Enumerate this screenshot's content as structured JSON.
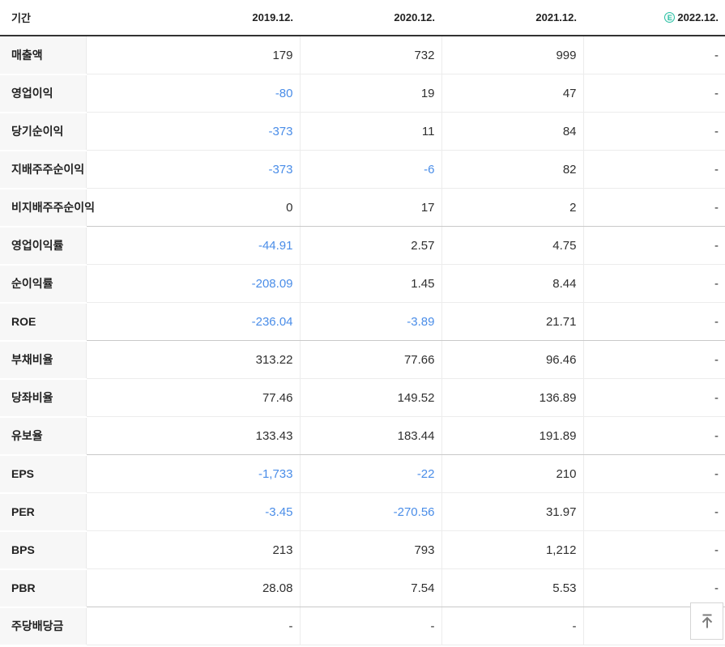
{
  "header": {
    "period_label": "기간",
    "estimate_badge_text": "E",
    "columns": [
      {
        "label": "2019.12.",
        "estimate": false
      },
      {
        "label": "2020.12.",
        "estimate": false
      },
      {
        "label": "2021.12.",
        "estimate": false
      },
      {
        "label": "2022.12.",
        "estimate": true
      }
    ]
  },
  "rows": [
    {
      "label": "매출액",
      "values": [
        "179",
        "732",
        "999",
        "-"
      ],
      "group_end": false
    },
    {
      "label": "영업이익",
      "values": [
        "-80",
        "19",
        "47",
        "-"
      ],
      "group_end": false
    },
    {
      "label": "당기순이익",
      "values": [
        "-373",
        "11",
        "84",
        "-"
      ],
      "group_end": false
    },
    {
      "label": "지배주주순이익",
      "values": [
        "-373",
        "-6",
        "82",
        "-"
      ],
      "group_end": false
    },
    {
      "label": "비지배주주순이익",
      "values": [
        "0",
        "17",
        "2",
        "-"
      ],
      "group_end": true
    },
    {
      "label": "영업이익률",
      "values": [
        "-44.91",
        "2.57",
        "4.75",
        "-"
      ],
      "group_end": false
    },
    {
      "label": "순이익률",
      "values": [
        "-208.09",
        "1.45",
        "8.44",
        "-"
      ],
      "group_end": false
    },
    {
      "label": "ROE",
      "values": [
        "-236.04",
        "-3.89",
        "21.71",
        "-"
      ],
      "group_end": true
    },
    {
      "label": "부채비율",
      "values": [
        "313.22",
        "77.66",
        "96.46",
        "-"
      ],
      "group_end": false
    },
    {
      "label": "당좌비율",
      "values": [
        "77.46",
        "149.52",
        "136.89",
        "-"
      ],
      "group_end": false
    },
    {
      "label": "유보율",
      "values": [
        "133.43",
        "183.44",
        "191.89",
        "-"
      ],
      "group_end": true
    },
    {
      "label": "EPS",
      "values": [
        "-1,733",
        "-22",
        "210",
        "-"
      ],
      "group_end": false
    },
    {
      "label": "PER",
      "values": [
        "-3.45",
        "-270.56",
        "31.97",
        "-"
      ],
      "group_end": false
    },
    {
      "label": "BPS",
      "values": [
        "213",
        "793",
        "1,212",
        "-"
      ],
      "group_end": false
    },
    {
      "label": "PBR",
      "values": [
        "28.08",
        "7.54",
        "5.53",
        "-"
      ],
      "group_end": true
    },
    {
      "label": "주당배당금",
      "values": [
        "-",
        "-",
        "-",
        "-"
      ],
      "group_end": false
    }
  ],
  "colors": {
    "negative_value": "#4a8de8",
    "estimate_badge": "#2bbfa4",
    "header_border": "#333333",
    "label_background": "#f7f7f7"
  },
  "scroll_top_button": {
    "icon": "arrow-up-to-top-icon"
  }
}
